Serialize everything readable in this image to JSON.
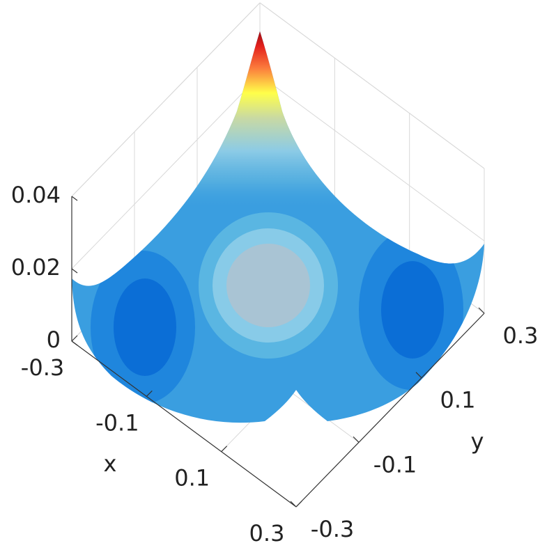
{
  "chart_data": {
    "type": "surface",
    "xlabel": "x",
    "ylabel": "y",
    "xlim": [
      -0.3,
      0.3
    ],
    "ylim": [
      -0.3,
      0.3
    ],
    "zlim": [
      0,
      0.04
    ],
    "xticks": [
      -0.3,
      -0.1,
      0.1,
      0.3
    ],
    "yticks": [
      -0.3,
      -0.1,
      0.1,
      0.3
    ],
    "zticks": [
      0,
      0.02,
      0.04
    ],
    "grid": true
  }
}
